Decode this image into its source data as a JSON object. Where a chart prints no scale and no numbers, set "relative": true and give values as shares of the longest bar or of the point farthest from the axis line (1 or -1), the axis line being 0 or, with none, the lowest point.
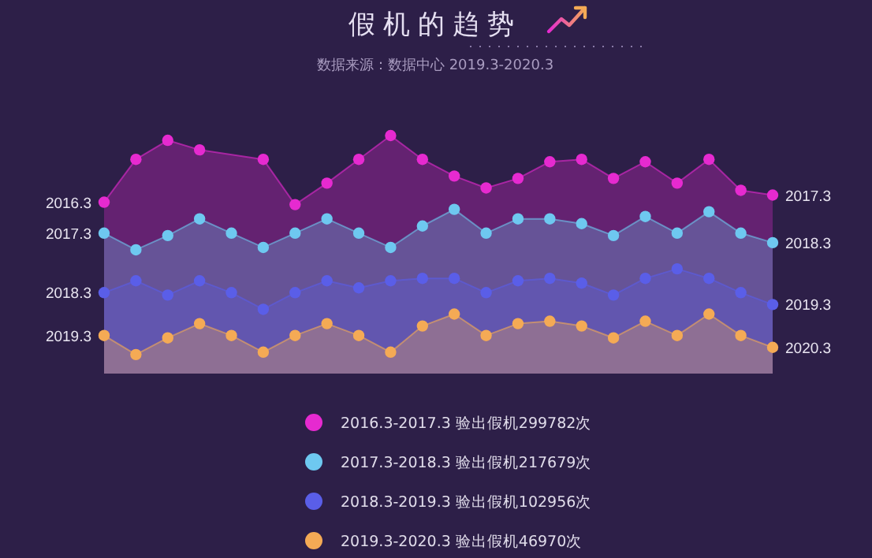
{
  "chart_data": {
    "type": "area",
    "title": "假机的趋势",
    "subtitle": "数据来源：数据中心 2019.3-2020.3",
    "relative": true,
    "marker": "circle",
    "legend": "bottom",
    "categories": [
      null,
      null,
      null,
      null,
      null,
      null,
      null,
      null,
      null,
      null,
      null,
      null,
      null,
      null,
      null,
      null,
      null,
      null,
      null,
      null,
      null,
      null
    ],
    "series": [
      {
        "name": "2016.3-2017.3  验出假机299782次",
        "color": "#e62ad0",
        "values": [
          0.72,
          0.9,
          0.98,
          0.94,
          null,
          0.9,
          0.71,
          0.8,
          0.9,
          1.0,
          0.9,
          0.83,
          0.78,
          0.82,
          0.89,
          0.9,
          0.82,
          0.89,
          0.8,
          0.9,
          0.77,
          0.75
        ]
      },
      {
        "name": "2017.3-2018.3  验出假机217679次",
        "color": "#6ec8f0",
        "values": [
          0.59,
          0.52,
          0.58,
          0.65,
          0.59,
          0.53,
          0.59,
          0.65,
          0.59,
          0.53,
          0.62,
          0.69,
          0.59,
          0.65,
          0.65,
          0.63,
          0.58,
          0.66,
          0.59,
          0.68,
          0.59,
          0.55
        ]
      },
      {
        "name": "2018.3-2019.3  验出假机102956次",
        "color": "#5a5ee8",
        "values": [
          0.34,
          0.39,
          0.33,
          0.39,
          0.34,
          0.27,
          0.34,
          0.39,
          0.36,
          0.39,
          0.4,
          0.4,
          0.34,
          0.39,
          0.4,
          0.38,
          0.33,
          0.4,
          0.44,
          0.4,
          0.34,
          0.29
        ]
      },
      {
        "name": "2019.3-2020.3  验出假机46970次",
        "color": "#f4aa55",
        "values": [
          0.16,
          0.08,
          0.15,
          0.21,
          0.16,
          0.09,
          0.16,
          0.21,
          0.16,
          0.09,
          0.2,
          0.25,
          0.16,
          0.21,
          0.22,
          0.2,
          0.15,
          0.22,
          0.16,
          0.25,
          0.16,
          0.11
        ]
      }
    ],
    "annotations": [
      "2016.3",
      "2017.3",
      "2017.3",
      "2018.3",
      "2018.3",
      "2019.3",
      "2019.3",
      "2020.3"
    ]
  }
}
